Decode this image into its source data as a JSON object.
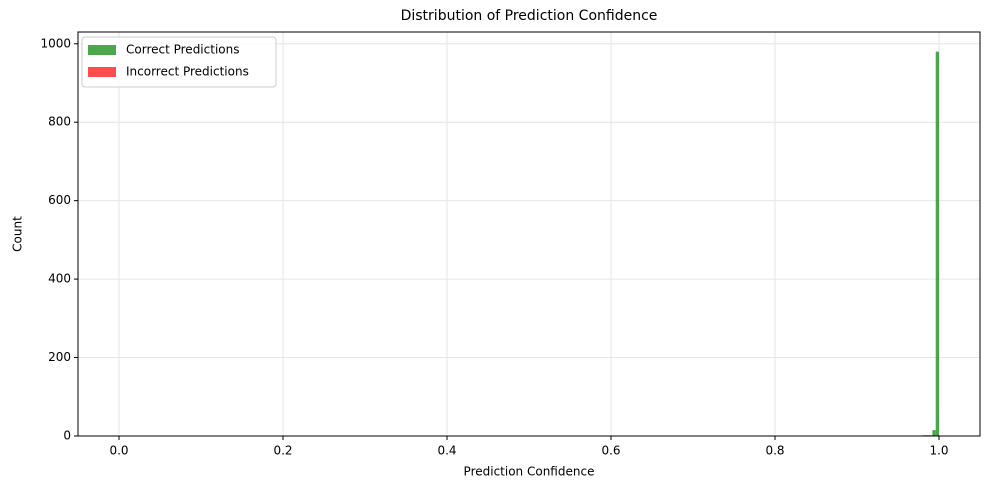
{
  "chart_data": {
    "type": "histogram",
    "title": "Distribution of Prediction Confidence",
    "xlabel": "Prediction Confidence",
    "ylabel": "Count",
    "xlim": [
      -0.05,
      1.05
    ],
    "ylim": [
      0,
      1030
    ],
    "xticks": [
      {
        "value": 0,
        "label": "0.0"
      },
      0.2,
      0.4,
      0.6,
      0.8,
      {
        "value": 1,
        "label": "1.0"
      }
    ],
    "yticks": [
      0,
      200,
      400,
      600,
      800,
      1000
    ],
    "grid": true,
    "legend": "upper left",
    "alpha": 0.7,
    "series": [
      {
        "name": "Correct Predictions",
        "color": "green",
        "bins": [
          0.92,
          0.924,
          0.928,
          0.932,
          0.936,
          0.94,
          0.944,
          0.948,
          0.952,
          0.956,
          0.96,
          0.964,
          0.968,
          0.972,
          0.976,
          0.98,
          0.984,
          0.988,
          0.992,
          0.996,
          1.0
        ],
        "values": [
          1,
          0,
          0,
          0,
          0,
          0,
          0,
          0,
          0,
          0,
          0,
          0,
          0,
          0,
          0,
          0,
          0,
          0,
          15,
          980
        ]
      },
      {
        "name": "Incorrect Predictions",
        "color": "red",
        "bins": [
          0.92,
          0.94,
          0.96,
          0.98,
          1.0
        ],
        "values": [
          1,
          0,
          1,
          2
        ]
      }
    ]
  }
}
